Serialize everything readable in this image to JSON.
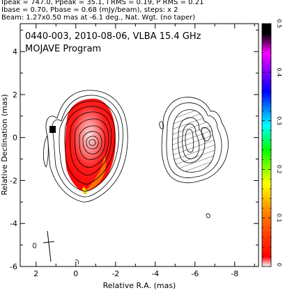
{
  "header": {
    "line1": "Ipeak = 747.0, Ppeak = 35.1, I RMS = 0.19, P RMS = 0.21",
    "line2": "Ibase = 0.70, Pbase = 0.68 (mJy/beam), steps: x 2",
    "line3": "Beam: 1.27x0.50 mas at -6.1 deg., Nat. Wgt. (no taper)"
  },
  "colors": {
    "intensity_fill": "#ff0000",
    "colorbar_stops": [
      "#ffffff",
      "#ff0000",
      "#ff8000",
      "#ffff00",
      "#00ff00",
      "#00ffff",
      "#0000ff",
      "#ff00ff",
      "#000000"
    ]
  },
  "chart_data": {
    "type": "contour",
    "title": "0440-003, 2010-08-06, VLBA 15.4 GHz",
    "subtitle": "MOJAVE Program",
    "xlabel": "Relative R.A. (mas)",
    "ylabel": "Relative Declination (mas)",
    "xlim": [
      2.8,
      -9.2
    ],
    "ylim": [
      -6.0,
      5.3
    ],
    "xticks": [
      2,
      0,
      -2,
      -4,
      -6,
      -8
    ],
    "xtick_labels": [
      "2",
      "0",
      "-2",
      "-4",
      "-6",
      "-8"
    ],
    "yticks": [
      4,
      2,
      0,
      -2,
      -4,
      -6
    ],
    "ytick_labels": [
      "4",
      "2",
      "0",
      "-2",
      "-4",
      "-6"
    ],
    "colorbar": {
      "range": [
        0,
        0.5
      ],
      "ticks": [
        0,
        0.1,
        0.2,
        0.3,
        0.4,
        0.5
      ],
      "tick_labels": [
        "0",
        "0.1",
        "0.2",
        "0.3",
        "0.4",
        "0.5"
      ]
    },
    "intensity_panel": {
      "center": [
        -0.5,
        0.2
      ],
      "contour_levels": 9
    },
    "polarization_panel": {
      "center": [
        -5.2,
        0.0
      ],
      "contour_levels": 7
    },
    "beam": {
      "major_mas": 1.27,
      "minor_mas": 0.5,
      "pa_deg": -6.1
    }
  }
}
